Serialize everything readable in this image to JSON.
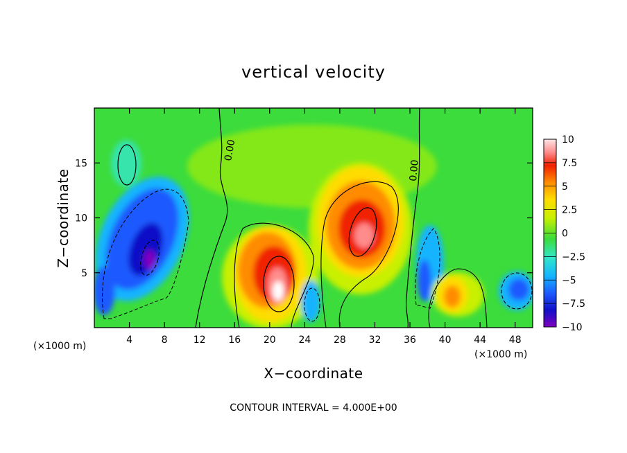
{
  "chart_data": {
    "type": "heatmap",
    "title": "vertical velocity",
    "xlabel": "X−coordinate",
    "ylabel": "Z−coordinate",
    "x_unit_left": "(×1000 m)",
    "x_unit_right": "(×1000 m)",
    "footer": "CONTOUR INTERVAL = 4.000E+00",
    "zero_contour_label": "0.00",
    "xlim": [
      0,
      50
    ],
    "ylim": [
      0,
      20
    ],
    "xticks": [
      4,
      8,
      12,
      16,
      20,
      24,
      28,
      32,
      36,
      40,
      44,
      48
    ],
    "yticks": [
      5,
      10,
      15
    ],
    "colorbar": {
      "min": -10,
      "max": 10,
      "ticks": [
        10,
        7.5,
        5,
        2.5,
        0,
        -2.5,
        -5,
        -7.5,
        -10
      ],
      "tick_labels": [
        "10",
        "7.5",
        "5",
        "2.5",
        "0",
        "−2.5",
        "−5",
        "−7.5",
        "−10"
      ],
      "colors": [
        "#8000c0",
        "#1010c8",
        "#1e5aff",
        "#14b4ff",
        "#32e6c8",
        "#3cdc3c",
        "#c8f000",
        "#ffdc00",
        "#ff8c00",
        "#f02000",
        "#ff8c8c",
        "#ffe6e6"
      ]
    },
    "features": [
      {
        "x": 6,
        "z": 9,
        "w": -7,
        "note": "downdraft"
      },
      {
        "x": 21,
        "z": 4,
        "w": 10,
        "note": "updraft maximum"
      },
      {
        "x": 30,
        "z": 9,
        "w": 9,
        "note": "updraft"
      },
      {
        "x": 25,
        "z": 2,
        "w": -4,
        "note": "downdraft"
      },
      {
        "x": 37.5,
        "z": 6,
        "w": -5,
        "note": "downdraft"
      },
      {
        "x": 41,
        "z": 2.5,
        "w": 5,
        "note": "updraft"
      },
      {
        "x": 47.5,
        "z": 3.5,
        "w": -5,
        "note": "downdraft"
      },
      {
        "x": 3,
        "z": 15.5,
        "w": -2,
        "note": "weak downdraft"
      }
    ]
  }
}
